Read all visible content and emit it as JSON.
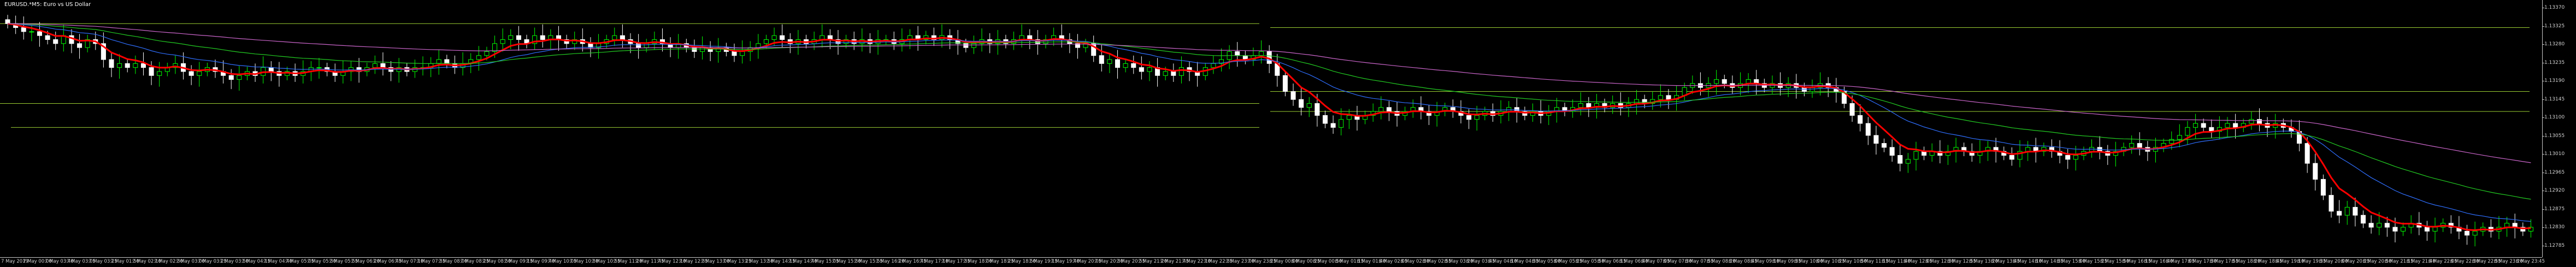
{
  "title": "EURUSD.*M5: Euro vs US Dollar",
  "colors": {
    "background": "#000000",
    "bull": "#00ff00",
    "bear": "#ffffff",
    "ma_fast": "#ff0000",
    "ma_blue": "#2f6fff",
    "ma_green": "#22cc22",
    "ma_violet": "#cc66cc",
    "hline": "#9acd32",
    "scale_text": "#d0d0d0"
  },
  "price_scale": [
    "1.13370",
    "1.13325",
    "1.13280",
    "1.13235",
    "1.13190",
    "1.13145",
    "1.13100",
    "1.13055",
    "1.13010",
    "1.12965",
    "1.12920",
    "1.12875",
    "1.12830",
    "1.12785"
  ],
  "time_axis": [
    "7 May 2019",
    "7 May 00:00",
    "7 May 03:40",
    "7 May 03:05",
    "7 May 03:25",
    "7 May 01:50",
    "7 May 02:10",
    "7 May 02:30",
    "7 May 03:00",
    "7 May 03:25",
    "7 May 03:50",
    "7 May 04:15",
    "7 May 04:40",
    "7 May 05:05",
    "7 May 05:30",
    "7 May 05:55",
    "7 May 06:20",
    "7 May 06:45",
    "7 May 07:10",
    "7 May 07:35",
    "7 May 08:00",
    "7 May 08:25",
    "7 May 08:50",
    "7 May 09:15",
    "7 May 09:40",
    "7 May 10:05",
    "7 May 10:30",
    "7 May 10:55",
    "7 May 11:20",
    "7 May 11:45",
    "7 May 12:10",
    "7 May 12:35",
    "7 May 13:00",
    "7 May 13:25",
    "7 May 13:50",
    "7 May 14:15",
    "7 May 14:40",
    "7 May 15:05",
    "7 May 15:30",
    "7 May 15:55",
    "7 May 16:20",
    "7 May 16:45",
    "7 May 17:10",
    "7 May 17:35",
    "7 May 18:00",
    "7 May 18:25",
    "7 May 18:50",
    "7 May 19:15",
    "7 May 19:40",
    "7 May 20:05",
    "7 May 20:30",
    "7 May 20:55",
    "7 May 21:20",
    "7 May 21:45",
    "7 May 22:10",
    "7 May 22:35",
    "7 May 23:00",
    "7 May 23:25",
    "8 May 00:00",
    "8 May 00:25",
    "8 May 00:50",
    "8 May 01:15",
    "8 May 01:40",
    "8 May 02:05",
    "8 May 02:30",
    "8 May 02:55",
    "8 May 03:20",
    "8 May 03:45",
    "8 May 04:10",
    "8 May 04:35",
    "8 May 05:00",
    "8 May 05:25",
    "8 May 05:50",
    "8 May 06:15",
    "8 May 06:40",
    "8 May 07:05",
    "8 May 07:30",
    "8 May 07:55",
    "8 May 08:20",
    "8 May 08:45",
    "8 May 09:10",
    "8 May 09:35",
    "8 May 10:00",
    "8 May 10:25",
    "8 May 10:50",
    "8 May 11:15",
    "8 May 11:40",
    "8 May 12:05",
    "8 May 12:30",
    "8 May 12:55",
    "8 May 13:20",
    "8 May 13:45",
    "8 May 14:10",
    "8 May 14:35",
    "8 May 15:00",
    "8 May 15:25",
    "8 May 15:50",
    "8 May 16:15",
    "8 May 16:40",
    "8 May 17:05",
    "8 May 17:30",
    "8 May 17:55",
    "8 May 18:20",
    "8 May 18:45",
    "8 May 19:10",
    "8 May 19:35",
    "8 May 20:00",
    "8 May 20:25",
    "8 May 20:50",
    "8 May 21:15",
    "8 May 21:40",
    "8 May 22:05",
    "8 May 22:30",
    "8 May 22:55",
    "8 May 23:20",
    "8 May 23:45"
  ],
  "chart_data": {
    "type": "candlestick",
    "symbol": "EURUSD",
    "timeframe": "M5",
    "ylim": [
      1.1278,
      1.1339
    ],
    "indicators": [
      "MA fast (red)",
      "MA (blue)",
      "MA (green)",
      "MA (violet)"
    ],
    "hlines": [
      1.1335,
      1.1334,
      1.1318,
      1.1315,
      1.1313,
      1.1309
    ],
    "close": [
      1.1335,
      1.1334,
      1.1333,
      1.1333,
      1.1332,
      1.1331,
      1.133,
      1.1332,
      1.133,
      1.1329,
      1.1331,
      1.133,
      1.1326,
      1.1324,
      1.1325,
      1.1324,
      1.1325,
      1.1324,
      1.1322,
      1.1323,
      1.1324,
      1.1325,
      1.1323,
      1.1322,
      1.1323,
      1.1324,
      1.1323,
      1.1322,
      1.1321,
      1.1322,
      1.1323,
      1.1322,
      1.1324,
      1.1323,
      1.1322,
      1.1323,
      1.1322,
      1.1323,
      1.1324,
      1.1324,
      1.1323,
      1.1322,
      1.1323,
      1.1324,
      1.1323,
      1.1324,
      1.1325,
      1.1324,
      1.1323,
      1.1324,
      1.1323,
      1.1324,
      1.1324,
      1.1325,
      1.1326,
      1.1325,
      1.1324,
      1.1325,
      1.1326,
      1.1327,
      1.1328,
      1.133,
      1.1331,
      1.1332,
      1.1331,
      1.133,
      1.1332,
      1.1331,
      1.1332,
      1.1331,
      1.133,
      1.1331,
      1.133,
      1.1329,
      1.133,
      1.1331,
      1.1332,
      1.1331,
      1.133,
      1.1329,
      1.133,
      1.1331,
      1.133,
      1.1329,
      1.133,
      1.1329,
      1.1328,
      1.1329,
      1.1328,
      1.1329,
      1.1328,
      1.1327,
      1.1328,
      1.1329,
      1.133,
      1.1331,
      1.1332,
      1.1331,
      1.133,
      1.1331,
      1.133,
      1.1331,
      1.1332,
      1.1331,
      1.133,
      1.1331,
      1.133,
      1.1331,
      1.133,
      1.1331,
      1.1331,
      1.133,
      1.1331,
      1.1332,
      1.1331,
      1.1332,
      1.1331,
      1.1332,
      1.1331,
      1.133,
      1.1329,
      1.133,
      1.1331,
      1.133,
      1.1331,
      1.133,
      1.1331,
      1.1332,
      1.1331,
      1.133,
      1.1331,
      1.1332,
      1.1331,
      1.133,
      1.1329,
      1.133,
      1.1327,
      1.1325,
      1.1326,
      1.1324,
      1.1325,
      1.1324,
      1.1323,
      1.1324,
      1.1322,
      1.1323,
      1.1322,
      1.1324,
      1.1323,
      1.1322,
      1.1324,
      1.1325,
      1.1326,
      1.1328,
      1.1327,
      1.1326,
      1.1327,
      1.1328,
      1.1325,
      1.1322,
      1.1318,
      1.1316,
      1.1314,
      1.1315,
      1.1312,
      1.131,
      1.1309,
      1.1311,
      1.1312,
      1.1311,
      1.1312,
      1.1313,
      1.1314,
      1.1313,
      1.1312,
      1.1313,
      1.1314,
      1.1313,
      1.1312,
      1.1313,
      1.1314,
      1.1313,
      1.1312,
      1.1311,
      1.1312,
      1.1313,
      1.1312,
      1.1313,
      1.1314,
      1.1313,
      1.1312,
      1.1313,
      1.1312,
      1.1313,
      1.1314,
      1.1313,
      1.1314,
      1.1315,
      1.1314,
      1.1315,
      1.1314,
      1.1315,
      1.1314,
      1.1315,
      1.1316,
      1.1315,
      1.1316,
      1.1317,
      1.1316,
      1.1317,
      1.1319,
      1.132,
      1.1319,
      1.132,
      1.1321,
      1.132,
      1.1319,
      1.132,
      1.1321,
      1.132,
      1.1319,
      1.132,
      1.1319,
      1.132,
      1.1319,
      1.1318,
      1.1319,
      1.132,
      1.1319,
      1.1318,
      1.1315,
      1.1312,
      1.131,
      1.1307,
      1.1305,
      1.1304,
      1.1302,
      1.13,
      1.1301,
      1.1303,
      1.1302,
      1.1303,
      1.1302,
      1.1303,
      1.1304,
      1.1303,
      1.1302,
      1.1303,
      1.1304,
      1.1303,
      1.1302,
      1.1301,
      1.1303,
      1.1304,
      1.1303,
      1.1304,
      1.1303,
      1.1302,
      1.1301,
      1.1302,
      1.1303,
      1.1304,
      1.1303,
      1.1302,
      1.1303,
      1.1304,
      1.1305,
      1.1304,
      1.1303,
      1.1304,
      1.1305,
      1.1306,
      1.1307,
      1.1309,
      1.131,
      1.1309,
      1.1308,
      1.1309,
      1.131,
      1.1309,
      1.131,
      1.1311,
      1.131,
      1.1309,
      1.131,
      1.1309,
      1.1308,
      1.1305,
      1.13,
      1.1296,
      1.1292,
      1.1288,
      1.1287,
      1.1289,
      1.1287,
      1.1285,
      1.1284,
      1.1285,
      1.1284,
      1.1283,
      1.1284,
      1.1285,
      1.1284,
      1.1283,
      1.1284,
      1.1285,
      1.1284,
      1.1283,
      1.1282,
      1.1283,
      1.1284,
      1.1283,
      1.1284,
      1.1285,
      1.1284,
      1.1283,
      1.1284
    ]
  }
}
